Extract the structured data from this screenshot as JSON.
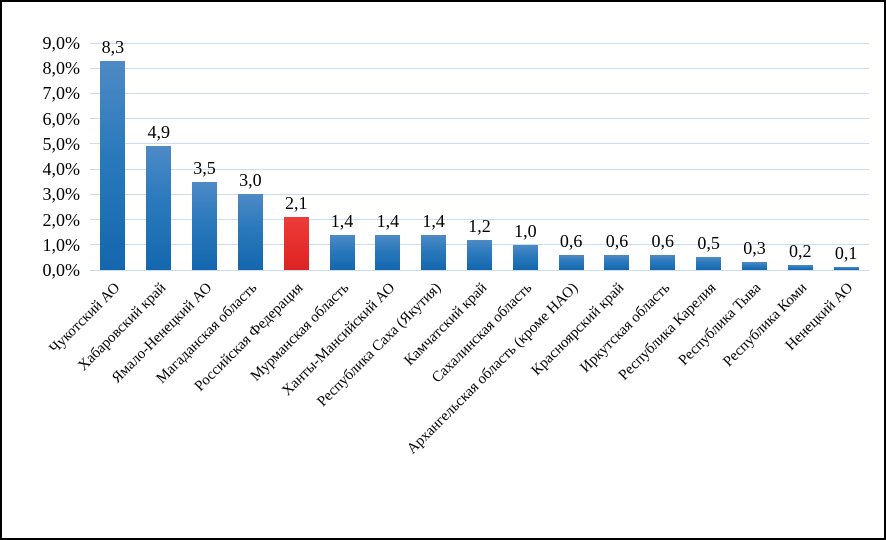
{
  "chart_data": {
    "type": "bar",
    "title": "",
    "categories": [
      "Чукотский АО",
      "Хабаровский край",
      "Ямало-Ненецкий АО",
      "Магаданская область",
      "Российская Федерация",
      "Мурманская область",
      "Ханты-Мансийский АО",
      "Республика Саха (Якутия)",
      "Камчатский край",
      "Сахалинская область",
      "Архангельская область (кроме НАО)",
      "Красноярский край",
      "Иркутская область",
      "Республика Карелия",
      "Республика Тыва",
      "Республика Коми",
      "Ненецкий АО"
    ],
    "values": [
      8.3,
      4.9,
      3.5,
      3.0,
      2.1,
      1.4,
      1.4,
      1.4,
      1.2,
      1.0,
      0.6,
      0.6,
      0.6,
      0.5,
      0.3,
      0.2,
      0.1
    ],
    "value_labels": [
      "8,3",
      "4,9",
      "3,5",
      "3,0",
      "2,1",
      "1,4",
      "1,4",
      "1,4",
      "1,2",
      "1,0",
      "0,6",
      "0,6",
      "0,6",
      "0,5",
      "0,3",
      "0,2",
      "0,1"
    ],
    "highlight_index": 4,
    "highlight_category": "Российская Федерация",
    "y_ticks": [
      "9,0%",
      "8,0%",
      "7,0%",
      "6,0%",
      "5,0%",
      "4,0%",
      "3,0%",
      "2,0%",
      "1,0%",
      "0,0%"
    ],
    "ylim": [
      0,
      9
    ],
    "grid": true,
    "legend": "none",
    "xlabel": "",
    "ylabel": "",
    "colors": {
      "bar_gradient_top": "#4e8ac6",
      "bar_gradient_mid": "#2a79bc",
      "bar_gradient_bottom": "#1467ae",
      "highlight_bar_top": "#ee3c38",
      "highlight_bar_bottom": "#dd2323",
      "gridline": "#c9dcf2",
      "text": "#000000",
      "frame_border": "#000000",
      "background": "#ffffff"
    }
  }
}
